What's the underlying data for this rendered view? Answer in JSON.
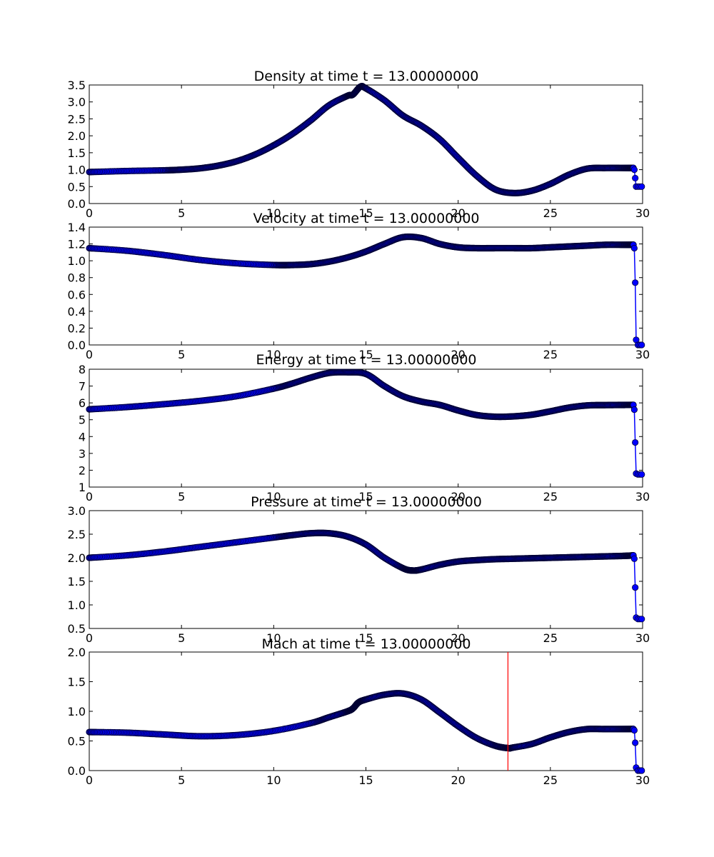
{
  "colors": {
    "line": "#0000ff",
    "marker_fill": "#0000ff",
    "marker_edge": "#000033",
    "vline": "#ff0000",
    "axes": "#000000",
    "background": "#ffffff"
  },
  "chart_data": [
    {
      "type": "line",
      "title": "Density at time t =    13.00000000",
      "xlim": [
        0,
        30
      ],
      "ylim": [
        0,
        3.5
      ],
      "xticks": [
        0,
        5,
        10,
        15,
        20,
        25,
        30
      ],
      "xtick_labels": [
        "0",
        "5",
        "10",
        "15",
        "20",
        "25",
        "30"
      ],
      "yticks": [
        0,
        0.5,
        1.0,
        1.5,
        2.0,
        2.5,
        3.0,
        3.5
      ],
      "ytick_labels": [
        "0.0",
        "0.5",
        "1.0",
        "1.5",
        "2.0",
        "2.5",
        "3.0",
        "3.5"
      ],
      "grid": false,
      "x": [
        0,
        2,
        4,
        5,
        6,
        7,
        8,
        9,
        10,
        11,
        12,
        13,
        14,
        14.3,
        14.7,
        15,
        16,
        17,
        18,
        19,
        20,
        21,
        22,
        23,
        24,
        25,
        26,
        27,
        28,
        29,
        29.5
      ],
      "y": [
        0.93,
        0.96,
        0.98,
        1.0,
        1.04,
        1.12,
        1.25,
        1.45,
        1.72,
        2.05,
        2.45,
        2.9,
        3.18,
        3.22,
        3.45,
        3.4,
        3.05,
        2.6,
        2.3,
        1.9,
        1.35,
        0.82,
        0.42,
        0.31,
        0.38,
        0.58,
        0.85,
        1.03,
        1.05,
        1.05,
        1.05
      ],
      "shock_x": [
        29.5,
        29.55,
        29.6,
        29.65,
        29.75,
        29.85,
        29.95
      ],
      "shock_y": [
        1.05,
        1.0,
        0.75,
        0.5,
        0.5,
        0.5,
        0.5
      ]
    },
    {
      "type": "line",
      "title": "Velocity at time t =    13.00000000",
      "xlim": [
        0,
        30
      ],
      "ylim": [
        0,
        1.4
      ],
      "xticks": [
        0,
        5,
        10,
        15,
        20,
        25,
        30
      ],
      "xtick_labels": [
        "0",
        "5",
        "10",
        "15",
        "20",
        "25",
        "30"
      ],
      "yticks": [
        0,
        0.2,
        0.4,
        0.6,
        0.8,
        1.0,
        1.2,
        1.4
      ],
      "ytick_labels": [
        "0.0",
        "0.2",
        "0.4",
        "0.6",
        "0.8",
        "1.0",
        "1.2",
        "1.4"
      ],
      "grid": false,
      "x": [
        0,
        2,
        4,
        6,
        8,
        10,
        11,
        12,
        13,
        14,
        15,
        16,
        17,
        18,
        19,
        20,
        21,
        22,
        23,
        24,
        25,
        26,
        27,
        28,
        29,
        29.5
      ],
      "y": [
        1.15,
        1.12,
        1.07,
        1.01,
        0.97,
        0.95,
        0.95,
        0.96,
        0.99,
        1.04,
        1.11,
        1.2,
        1.28,
        1.27,
        1.2,
        1.16,
        1.15,
        1.15,
        1.15,
        1.15,
        1.16,
        1.17,
        1.18,
        1.19,
        1.19,
        1.19
      ],
      "shock_x": [
        29.5,
        29.55,
        29.6,
        29.65,
        29.75,
        29.85,
        29.95
      ],
      "shock_y": [
        1.19,
        1.15,
        0.74,
        0.06,
        0.0,
        0.0,
        0.0
      ]
    },
    {
      "type": "line",
      "title": "Energy at time t =    13.00000000",
      "xlim": [
        0,
        30
      ],
      "ylim": [
        1,
        8
      ],
      "xticks": [
        0,
        5,
        10,
        15,
        20,
        25,
        30
      ],
      "xtick_labels": [
        "0",
        "5",
        "10",
        "15",
        "20",
        "25",
        "30"
      ],
      "yticks": [
        1,
        2,
        3,
        4,
        5,
        6,
        7,
        8
      ],
      "ytick_labels": [
        "1",
        "2",
        "3",
        "4",
        "5",
        "6",
        "7",
        "8"
      ],
      "grid": false,
      "x": [
        0,
        2,
        4,
        6,
        8,
        10,
        11,
        12,
        13,
        14,
        15,
        16,
        17,
        18,
        19,
        20,
        21,
        22,
        23,
        24,
        25,
        26,
        27,
        28,
        29,
        29.5
      ],
      "y": [
        5.62,
        5.75,
        5.92,
        6.12,
        6.4,
        6.85,
        7.15,
        7.5,
        7.78,
        7.82,
        7.72,
        7.0,
        6.4,
        6.08,
        5.88,
        5.55,
        5.28,
        5.18,
        5.2,
        5.3,
        5.5,
        5.72,
        5.85,
        5.87,
        5.88,
        5.88
      ],
      "shock_x": [
        29.5,
        29.55,
        29.6,
        29.65,
        29.75,
        29.85,
        29.95
      ],
      "shock_y": [
        5.88,
        5.6,
        3.65,
        1.8,
        1.75,
        1.75,
        1.75
      ]
    },
    {
      "type": "line",
      "title": "Pressure at time t =    13.00000000",
      "xlim": [
        0,
        30
      ],
      "ylim": [
        0.5,
        3.0
      ],
      "xticks": [
        0,
        5,
        10,
        15,
        20,
        25,
        30
      ],
      "xtick_labels": [
        "0",
        "5",
        "10",
        "15",
        "20",
        "25",
        "30"
      ],
      "yticks": [
        0.5,
        1.0,
        1.5,
        2.0,
        2.5,
        3.0
      ],
      "ytick_labels": [
        "0.5",
        "1.0",
        "1.5",
        "2.0",
        "2.5",
        "3.0"
      ],
      "grid": false,
      "x": [
        0,
        2,
        4,
        6,
        8,
        10,
        11,
        12,
        13,
        14,
        15,
        16,
        17,
        17.5,
        18,
        19,
        20,
        21,
        22,
        23,
        24,
        25,
        26,
        27,
        28,
        29,
        29.5
      ],
      "y": [
        2.0,
        2.05,
        2.13,
        2.23,
        2.33,
        2.43,
        2.48,
        2.52,
        2.52,
        2.45,
        2.28,
        2.0,
        1.78,
        1.73,
        1.75,
        1.85,
        1.92,
        1.95,
        1.97,
        1.98,
        1.99,
        2.0,
        2.01,
        2.02,
        2.03,
        2.04,
        2.05
      ],
      "shock_x": [
        29.5,
        29.55,
        29.6,
        29.65,
        29.75,
        29.85,
        29.95
      ],
      "shock_y": [
        2.05,
        1.98,
        1.37,
        0.73,
        0.7,
        0.7,
        0.7
      ]
    },
    {
      "type": "line",
      "title": "Mach at time t =    13.00000000",
      "xlim": [
        0,
        30
      ],
      "ylim": [
        0,
        2.0
      ],
      "xticks": [
        0,
        5,
        10,
        15,
        20,
        25,
        30
      ],
      "xtick_labels": [
        "0",
        "5",
        "10",
        "15",
        "20",
        "25",
        "30"
      ],
      "yticks": [
        0,
        0.5,
        1.0,
        1.5,
        2.0
      ],
      "ytick_labels": [
        "0.0",
        "0.5",
        "1.0",
        "1.5",
        "2.0"
      ],
      "grid": false,
      "x": [
        0,
        2,
        4,
        6,
        8,
        10,
        12,
        13,
        14,
        14.3,
        14.6,
        15,
        16,
        17,
        18,
        19,
        20,
        21,
        22,
        22.7,
        23,
        24,
        25,
        26,
        27,
        28,
        29,
        29.5
      ],
      "y": [
        0.65,
        0.64,
        0.61,
        0.58,
        0.6,
        0.67,
        0.8,
        0.9,
        1.0,
        1.05,
        1.15,
        1.2,
        1.28,
        1.3,
        1.2,
        0.98,
        0.75,
        0.55,
        0.42,
        0.38,
        0.39,
        0.45,
        0.56,
        0.65,
        0.7,
        0.7,
        0.7,
        0.7
      ],
      "shock_x": [
        29.5,
        29.55,
        29.6,
        29.65,
        29.75,
        29.85,
        29.95
      ],
      "shock_y": [
        0.7,
        0.68,
        0.47,
        0.05,
        0.0,
        0.0,
        0.0
      ],
      "vline_x": 22.7
    }
  ]
}
